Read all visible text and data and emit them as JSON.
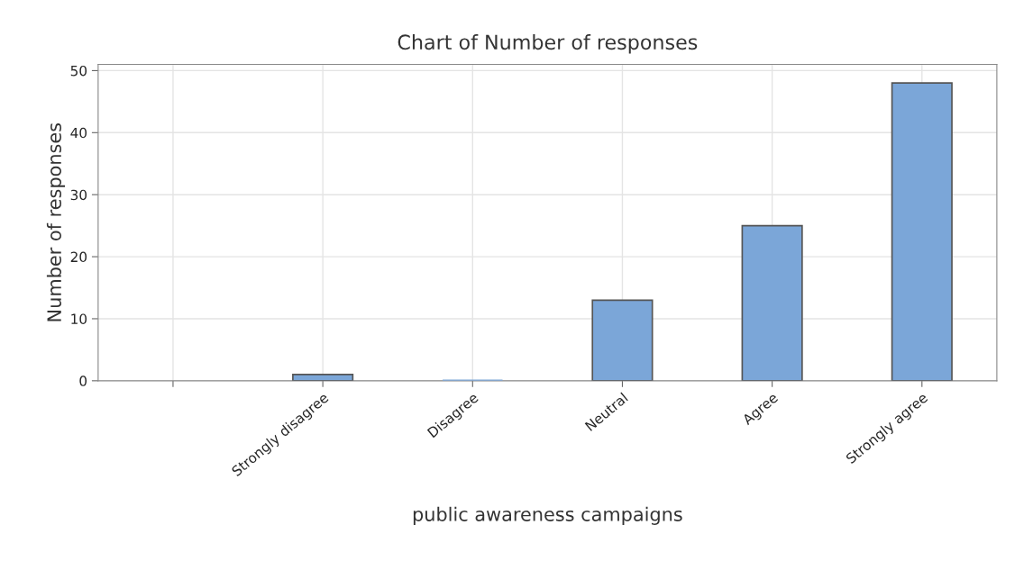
{
  "chart_data": {
    "type": "bar",
    "title": "Chart of Number of responses",
    "xlabel": "public awareness campaigns",
    "ylabel": "Number of responses",
    "categories": [
      null,
      "Strongly disagree",
      "Disagree",
      "Neutral",
      "Agree",
      "Strongly agree"
    ],
    "values": [
      null,
      1,
      0,
      13,
      25,
      48
    ],
    "color": "#7ba6d8",
    "ylim": [
      0,
      51
    ],
    "yticks": [
      0,
      10,
      20,
      30,
      40,
      50
    ],
    "grid": true
  }
}
